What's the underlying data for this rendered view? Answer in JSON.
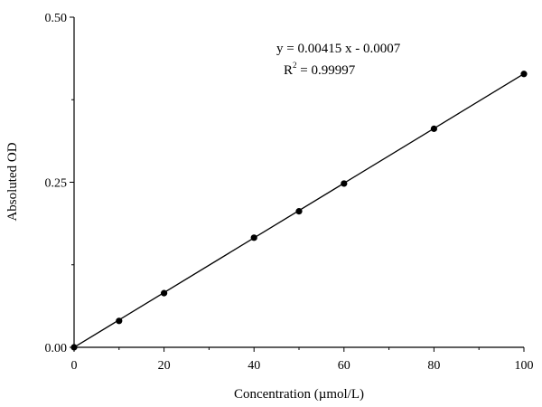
{
  "chart_data": {
    "type": "scatter",
    "title": "",
    "xlabel": "Concentration (µmol/L)",
    "ylabel": "Absoluted OD",
    "xlim": [
      0,
      100
    ],
    "ylim": [
      0,
      0.5
    ],
    "x_ticks": [
      "0",
      "20",
      "40",
      "60",
      "80",
      "100"
    ],
    "y_ticks": [
      "0.00",
      "0.25",
      "0.50"
    ],
    "grid": false,
    "points": {
      "x": [
        0,
        10,
        20,
        40,
        50,
        60,
        80,
        100
      ],
      "y": [
        0,
        0.04,
        0.082,
        0.166,
        0.206,
        0.248,
        0.331,
        0.414
      ]
    },
    "fit_line": {
      "slope": 0.00415,
      "intercept": -0.0007,
      "x_range": [
        0,
        100
      ]
    },
    "annotations": {
      "equation": "y = 0.00415 x - 0.0007",
      "r2_label": "R",
      "r2_sup": "2",
      "r2_value": " = 0.99997"
    },
    "colors": {
      "marker": "#000000",
      "line": "#000000"
    }
  }
}
